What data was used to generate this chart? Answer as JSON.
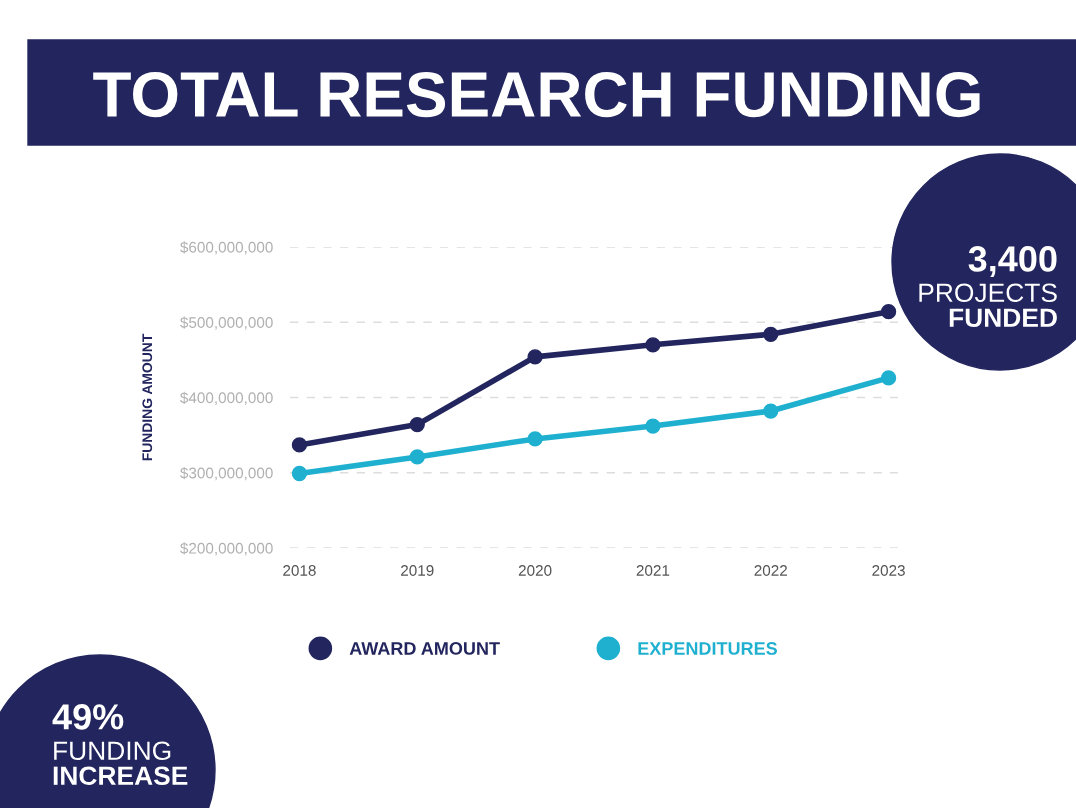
{
  "chart_data": {
    "type": "line",
    "title": "TOTAL RESEARCH FUNDING",
    "ylabel": "FUNDING AMOUNT",
    "categories": [
      "2018",
      "2019",
      "2020",
      "2021",
      "2022",
      "2023"
    ],
    "series": [
      {
        "name": "AWARD AMOUNT",
        "color": "#23265e",
        "values": [
          337000000,
          364000000,
          454000000,
          470000000,
          484000000,
          514000000
        ]
      },
      {
        "name": "EXPENDITURES",
        "color": "#1fb0d0",
        "values": [
          299000000,
          321000000,
          345000000,
          362000000,
          382000000,
          426000000
        ]
      }
    ],
    "ylim": [
      200000000,
      600000000
    ],
    "yticks": [
      {
        "value": 200000000,
        "label": "$200,000,000"
      },
      {
        "value": 300000000,
        "label": "$300,000,000"
      },
      {
        "value": 400000000,
        "label": "$400,000,000"
      },
      {
        "value": 500000000,
        "label": "$500,000,000"
      },
      {
        "value": 600000000,
        "label": "$600,000,000"
      }
    ],
    "grid": "y",
    "legend": "bottom",
    "marker": "circle",
    "line_style": "solid",
    "annotations": [
      "3,400\nPROJECTS\nFUNDED",
      "49%\nFUNDING\nINCREASE"
    ]
  }
}
